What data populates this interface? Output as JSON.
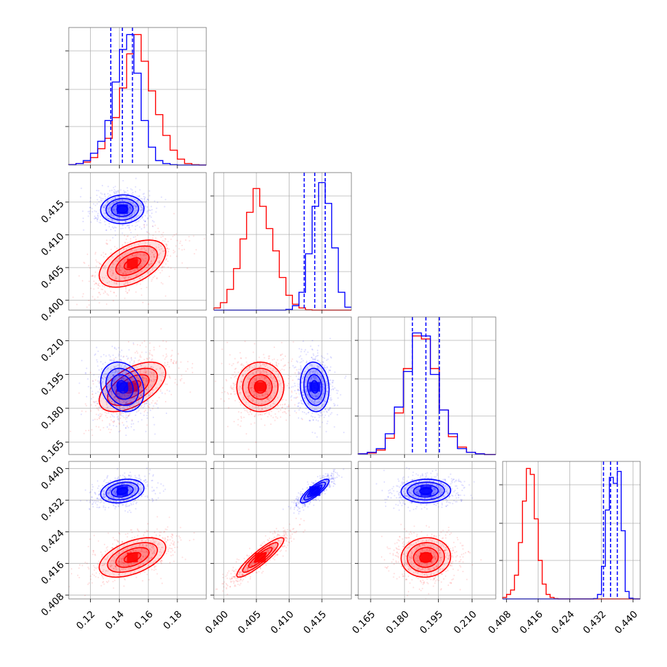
{
  "chart_data": {
    "type": "corner",
    "title": "",
    "grid": true,
    "series": [
      {
        "color": "#0000ff"
      },
      {
        "color": "#ff0000"
      }
    ],
    "parameters": [
      {
        "axis_range": [
          0.105,
          0.2
        ],
        "ticks": [
          0.12,
          0.14,
          0.16,
          0.18
        ],
        "tick_labels": [
          "0.12",
          "0.14",
          "0.16",
          "0.18"
        ]
      },
      {
        "axis_range": [
          0.3985,
          0.4195
        ],
        "ticks": [
          0.4,
          0.405,
          0.41,
          0.415
        ],
        "tick_labels": [
          "0.400",
          "0.405",
          "0.410",
          "0.415"
        ]
      },
      {
        "axis_range": [
          0.1595,
          0.2205
        ],
        "ticks": [
          0.165,
          0.18,
          0.195,
          0.21
        ],
        "tick_labels": [
          "0.165",
          "0.180",
          "0.195",
          "0.210"
        ]
      },
      {
        "axis_range": [
          0.407,
          0.4418
        ],
        "ticks": [
          0.408,
          0.416,
          0.424,
          0.432,
          0.44
        ],
        "tick_labels": [
          "0.408",
          "0.416",
          "0.424",
          "0.432",
          "0.440"
        ]
      }
    ],
    "quantiles": {
      "color": "#0000ff",
      "values": [
        [
          0.134,
          0.142,
          0.149
        ],
        [
          0.4123,
          0.4139,
          0.4155
        ],
        [
          0.1835,
          0.1895,
          0.1955
        ],
        [
          0.4325,
          0.4343,
          0.436
        ]
      ]
    },
    "histograms": [
      {
        "bins": [
          0.105,
          0.11,
          0.115,
          0.12,
          0.125,
          0.13,
          0.135,
          0.14,
          0.145,
          0.15,
          0.155,
          0.16,
          0.165,
          0.17,
          0.175,
          0.18,
          0.185,
          0.19,
          0.195,
          0.2
        ],
        "blue": [
          0.3,
          1,
          3,
          8,
          16,
          30,
          56,
          78,
          88,
          62,
          30,
          12,
          3,
          1,
          0.3,
          0,
          0,
          0,
          0
        ],
        "red": [
          0.3,
          1,
          2,
          5,
          11,
          18,
          32,
          52,
          75,
          88,
          70,
          50,
          34,
          20,
          10,
          4,
          1,
          0.3,
          0
        ]
      },
      {
        "bins": [
          0.3985,
          0.3995,
          0.4005,
          0.4015,
          0.4025,
          0.4035,
          0.4045,
          0.4055,
          0.4065,
          0.4075,
          0.4085,
          0.4095,
          0.4105,
          0.4115,
          0.4125,
          0.4135,
          0.4145,
          0.4155,
          0.4165,
          0.4175,
          0.4185,
          0.4195
        ],
        "blue": [
          0,
          0,
          0,
          0,
          0,
          0,
          0,
          0,
          0,
          0,
          0,
          0.5,
          3,
          12,
          38,
          70,
          86,
          72,
          42,
          12,
          2
        ],
        "red": [
          1.5,
          5,
          14,
          28,
          48,
          66,
          82,
          70,
          55,
          40,
          22,
          10,
          4,
          1.5,
          0.3,
          0,
          0,
          0,
          0,
          0,
          0
        ]
      },
      {
        "bins": [
          0.1595,
          0.1635,
          0.1675,
          0.1715,
          0.1755,
          0.1795,
          0.1835,
          0.1875,
          0.1915,
          0.1955,
          0.1995,
          0.2035,
          0.2075,
          0.2115,
          0.2155,
          0.2205
        ],
        "blue": [
          0.5,
          1.5,
          4,
          14,
          32,
          56,
          82,
          80,
          54,
          30,
          14,
          4,
          1.5,
          0.5,
          0
        ],
        "red": [
          0.5,
          1,
          3,
          11,
          28,
          58,
          80,
          78,
          58,
          30,
          12,
          5,
          1.5,
          0.5,
          0
        ]
      },
      {
        "bins": [
          0.407,
          0.408,
          0.409,
          0.41,
          0.411,
          0.412,
          0.413,
          0.414,
          0.415,
          0.416,
          0.417,
          0.418,
          0.419,
          0.42,
          0.421,
          0.422,
          0.423,
          0.424,
          0.425,
          0.426,
          0.427,
          0.428,
          0.429,
          0.43,
          0.431,
          0.432,
          0.433,
          0.434,
          0.435,
          0.436,
          0.437,
          0.438,
          0.439,
          0.44,
          0.441,
          0.4418
        ],
        "blue": [
          0,
          0,
          0,
          0,
          0,
          0,
          0,
          0,
          0,
          0,
          0,
          0,
          0,
          0,
          0,
          0,
          0,
          0,
          0,
          0,
          0,
          0,
          0,
          0.3,
          3,
          22,
          60,
          82,
          78,
          86,
          46,
          5,
          0.5,
          0,
          0
        ],
        "red": [
          1,
          3,
          6,
          16,
          38,
          66,
          88,
          84,
          54,
          26,
          10,
          3,
          1,
          0.3,
          0,
          0,
          0,
          0,
          0,
          0,
          0,
          0,
          0,
          0,
          0,
          0,
          0,
          0,
          0,
          0,
          0,
          0,
          0,
          0,
          0
        ]
      }
    ],
    "contour_series": [
      {
        "series": "blue",
        "params": [
          [
            0.142,
            0.1135,
            0.011,
            0.00175,
            0.25
          ],
          [
            0.1895,
            0.0045,
            0.0075,
            0.2
          ],
          [
            0.4343,
            0.0017,
            0.0014,
            0.0015
          ]
        ],
        "means": [
          0.142,
          0.4139,
          0.1895,
          0.4343
        ],
        "sds": [
          0.0075,
          0.0011,
          0.0055,
          0.0015
        ],
        "corr": [
          [
            1,
            0.05,
            -0.2,
            0.25
          ],
          [
            0.05,
            1,
            -0.1,
            0.85
          ],
          [
            -0.2,
            -0.1,
            1,
            0.05
          ],
          [
            0.25,
            0.85,
            0.05,
            1
          ]
        ]
      },
      {
        "series": "red",
        "params": [],
        "means": [
          0.149,
          0.4056,
          0.1895,
          0.4175
        ],
        "sds": [
          0.0115,
          0.0018,
          0.0055,
          0.0025
        ],
        "corr": [
          [
            1,
            0.5,
            0.55,
            0.5
          ],
          [
            0.5,
            1,
            0.0,
            0.9
          ],
          [
            0.55,
            0.0,
            1,
            0.05
          ],
          [
            0.5,
            0.9,
            0.05,
            1
          ]
        ]
      }
    ],
    "contour_levels": [
      0.5,
      1.0,
      1.5,
      2.0
    ]
  }
}
